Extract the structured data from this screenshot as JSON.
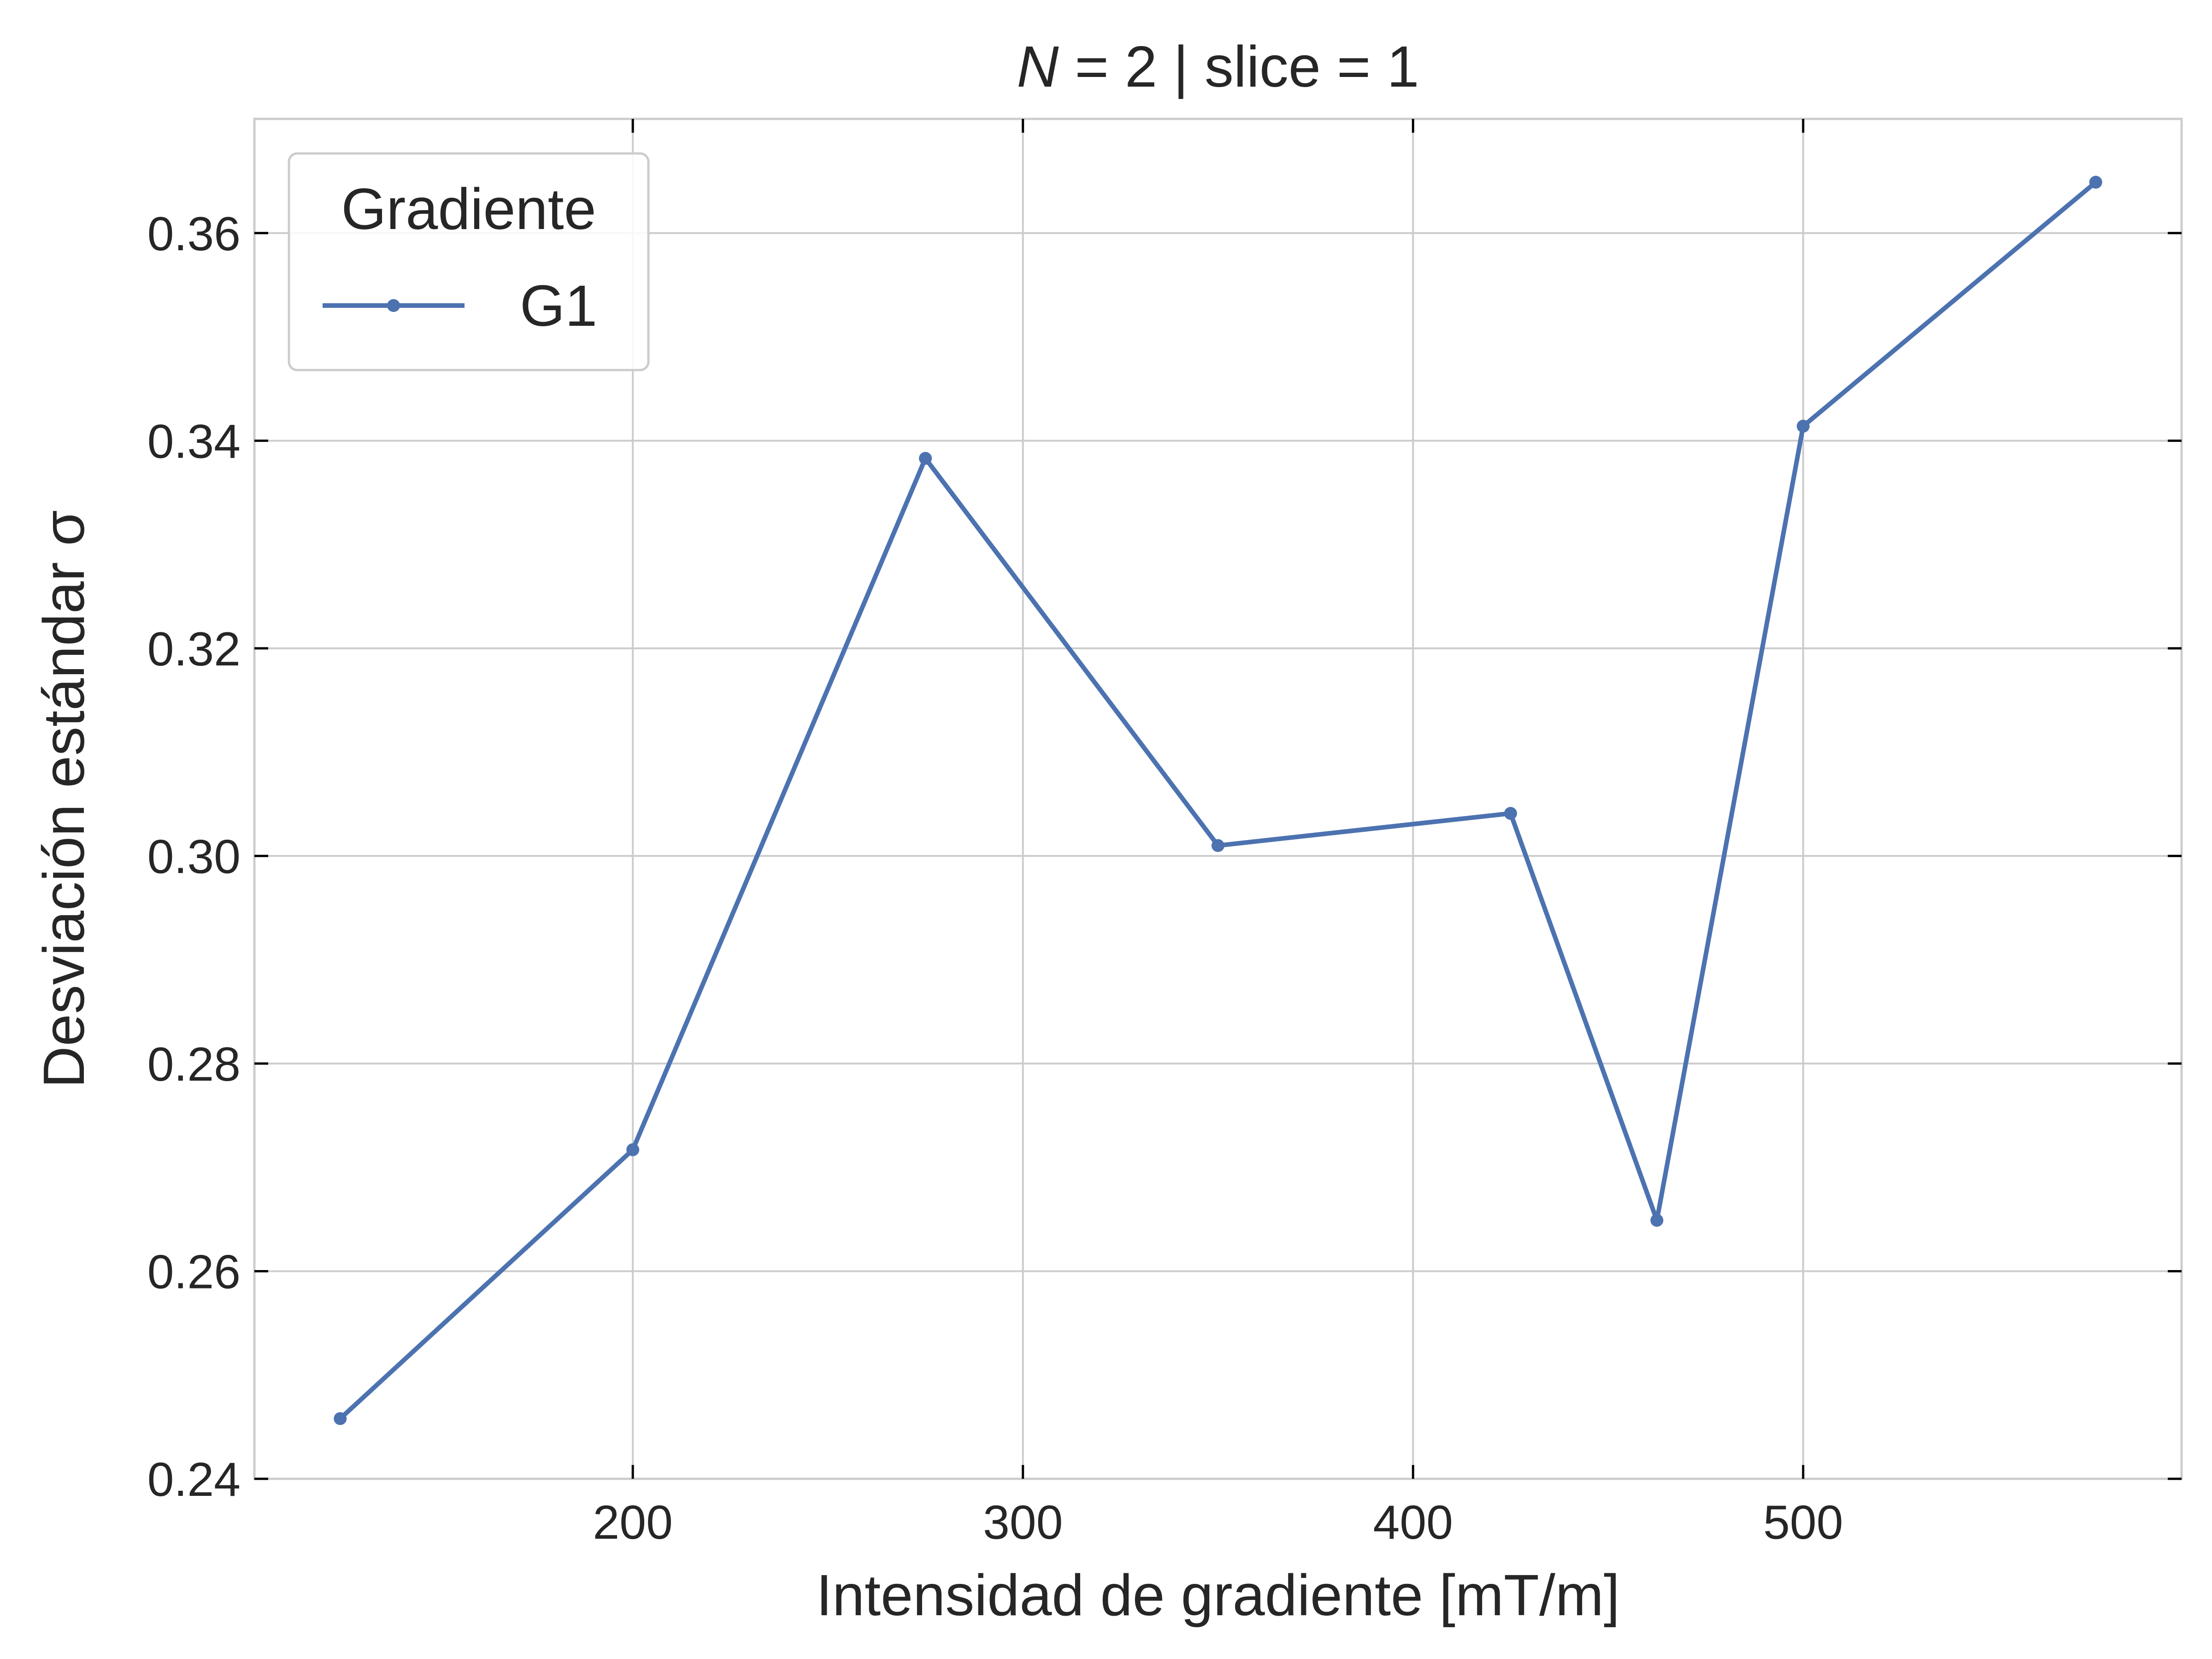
{
  "chart_data": {
    "type": "line",
    "title": "N = 2 | slice = 1",
    "title_italic_part": "N",
    "title_rest": " = 2 | slice = 1",
    "xlabel": "Intensidad de gradiente [mT/m]",
    "ylabel": "Desviación estándar σ",
    "xlim": [
      103,
      597
    ],
    "ylim": [
      0.24,
      0.371
    ],
    "xticks": [
      200,
      300,
      400,
      500
    ],
    "xtick_labels": [
      "200",
      "300",
      "400",
      "500"
    ],
    "yticks": [
      0.24,
      0.26,
      0.28,
      0.3,
      0.32,
      0.34,
      0.36
    ],
    "ytick_labels": [
      "0.24",
      "0.26",
      "0.28",
      "0.30",
      "0.32",
      "0.34",
      "0.36"
    ],
    "grid": true,
    "legend": {
      "title": "Gradiente",
      "position": "top-left"
    },
    "series": [
      {
        "name": "G1",
        "color": "#4c72b0",
        "marker": "dot",
        "x": [
          125,
          200,
          275,
          350,
          425,
          462.5,
          500,
          575
        ],
        "y": [
          0.2458,
          0.2717,
          0.3383,
          0.301,
          0.3041,
          0.2649,
          0.3414,
          0.3649
        ]
      }
    ]
  }
}
